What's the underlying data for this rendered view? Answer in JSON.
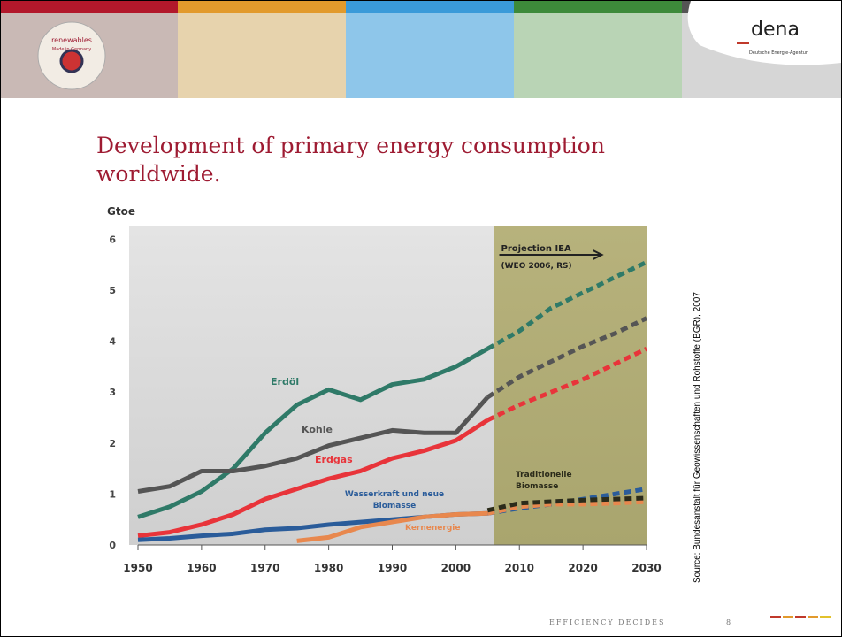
{
  "slide": {
    "logo_text": "renewables",
    "logo_subtext": "Made in Germany",
    "brand": "dena",
    "brand_subtitle": "Deutsche Energie-Agentur",
    "title": "Development of primary energy consumption worldwide.",
    "source": "Source: Bundesanstalt für Geowissenschaften und Rohstoffe (BGR), 2007",
    "footer": "EFFICIENCY DECIDES",
    "page_number": "8"
  },
  "chart_data": {
    "type": "line",
    "y_label": "Gtoe",
    "projection_label": "Projection IEA",
    "projection_note": "(WEO 2006, RS)",
    "projection_x": 2006,
    "x": [
      1950,
      1955,
      1960,
      1965,
      1970,
      1975,
      1980,
      1985,
      1990,
      1995,
      2000,
      2005,
      2010,
      2015,
      2020,
      2025,
      2030
    ],
    "series": [
      {
        "name": "Erdöl",
        "color": "#2f7a68",
        "values": [
          0.55,
          0.75,
          1.05,
          1.5,
          2.2,
          2.75,
          3.05,
          2.85,
          3.15,
          3.25,
          3.5,
          3.85,
          4.2,
          4.65,
          4.95,
          5.25,
          5.55
        ]
      },
      {
        "name": "Kohle",
        "color": "#555555",
        "values": [
          1.05,
          1.15,
          1.45,
          1.45,
          1.55,
          1.7,
          1.95,
          2.1,
          2.25,
          2.2,
          2.2,
          2.9,
          3.3,
          3.6,
          3.9,
          4.15,
          4.45
        ]
      },
      {
        "name": "Erdgas",
        "color": "#e8343a",
        "values": [
          0.18,
          0.25,
          0.4,
          0.6,
          0.9,
          1.1,
          1.3,
          1.45,
          1.7,
          1.85,
          2.05,
          2.45,
          2.75,
          3.0,
          3.25,
          3.55,
          3.85
        ]
      },
      {
        "name": "Wasserkraft und neue Biomasse",
        "color": "#2a5c9a",
        "values": [
          0.1,
          0.13,
          0.18,
          0.22,
          0.3,
          0.33,
          0.4,
          0.45,
          0.5,
          0.55,
          0.6,
          0.62,
          0.72,
          0.8,
          0.9,
          1.0,
          1.1
        ]
      },
      {
        "name": "Kernenergie",
        "color": "#e8884e",
        "values": [
          null,
          null,
          null,
          null,
          null,
          0.08,
          0.15,
          0.35,
          0.45,
          0.55,
          0.6,
          0.62,
          0.75,
          0.8,
          0.8,
          0.82,
          0.85
        ]
      },
      {
        "name": "Traditionelle Biomasse",
        "color": "#2b2b1a",
        "values": [
          null,
          null,
          null,
          null,
          null,
          null,
          null,
          null,
          null,
          null,
          null,
          0.68,
          0.82,
          0.85,
          0.88,
          0.9,
          0.92
        ]
      }
    ],
    "xlim": [
      1950,
      2030
    ],
    "xticks": [
      1950,
      1960,
      1970,
      1980,
      1990,
      2000,
      2010,
      2020,
      2030
    ],
    "ylim": [
      0,
      6.25
    ],
    "yticks": [
      0,
      1,
      2,
      3,
      4,
      5,
      6
    ],
    "grid": false
  }
}
